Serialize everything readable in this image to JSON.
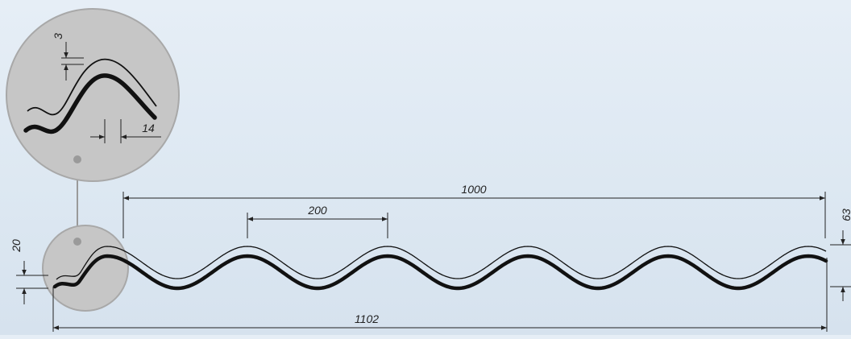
{
  "dimensions": {
    "overall_width": "1102",
    "pitch_1000": "1000",
    "wave_pitch": "200",
    "profile_height": "63",
    "edge_height": "20",
    "detail_thickness": "3",
    "detail_offset": "14"
  },
  "colors": {
    "background": "#dde8f2",
    "magnifier_fill": "#c6c6c6",
    "magnifier_stroke": "#a9a9a9",
    "profile": "#111111",
    "dimension_line": "#222222"
  },
  "icons": {
    "magnifier": "magnifier-circle",
    "leader": "leader-dot"
  }
}
